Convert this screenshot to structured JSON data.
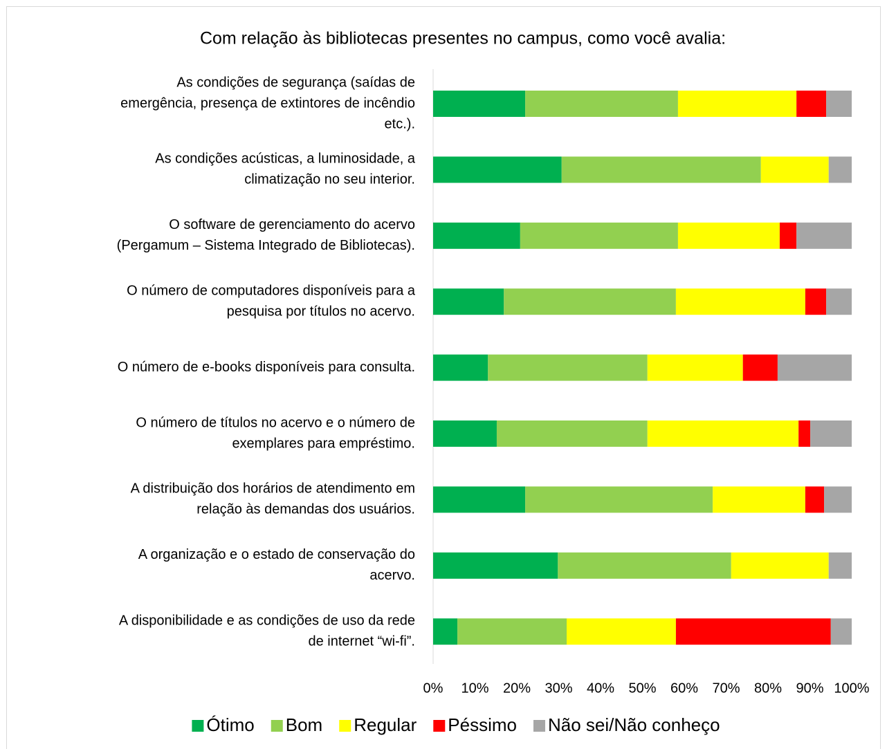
{
  "chart_data": {
    "type": "stacked_bar_horizontal",
    "title": "Com relação às bibliotecas presentes no campus, como você avalia:",
    "categories": [
      [
        "As condições de segurança (saídas de",
        "emergência, presença de extintores de incêndio",
        "etc.)."
      ],
      [
        "As condições acústicas, a luminosidade, a",
        "climatização no seu interior."
      ],
      [
        "O software de gerenciamento do acervo",
        "(Pergamum – Sistema Integrado de Bibliotecas)."
      ],
      [
        "O número de computadores disponíveis para a",
        "pesquisa por títulos no acervo."
      ],
      [
        "O número de e-books disponíveis para consulta."
      ],
      [
        "O número de títulos no acervo e o número de",
        "exemplares para empréstimo."
      ],
      [
        "A distribuição dos horários de atendimento em",
        "relação às demandas dos usuários."
      ],
      [
        "A organização e o estado de conservação do",
        "acervo."
      ],
      [
        "A disponibilidade e as condições de uso da rede",
        "de internet “wi-fi”."
      ]
    ],
    "series": [
      {
        "name": "Ótimo",
        "color": "#00b050",
        "values": [
          22.0,
          30.7,
          20.8,
          16.9,
          13.1,
          15.2,
          22.0,
          29.8,
          5.8
        ]
      },
      {
        "name": "Bom",
        "color": "#92d050",
        "values": [
          36.5,
          47.6,
          37.7,
          41.1,
          38.1,
          36.0,
          44.8,
          41.4,
          26.1
        ]
      },
      {
        "name": "Regular",
        "color": "#ffff00",
        "values": [
          28.3,
          16.2,
          24.3,
          30.9,
          22.8,
          36.1,
          22.1,
          23.3,
          26.1
        ]
      },
      {
        "name": "Péssimo",
        "color": "#ff0000",
        "values": [
          7.1,
          0,
          4.0,
          5.0,
          8.3,
          2.8,
          4.5,
          0,
          37.0
        ]
      },
      {
        "name": "Não sei/Não conheço",
        "color": "#a6a6a6",
        "values": [
          6.1,
          5.5,
          13.2,
          6.1,
          17.7,
          9.9,
          6.6,
          5.5,
          5.0
        ]
      }
    ],
    "xlim": [
      0,
      100
    ],
    "xticks": [
      {
        "value": 0,
        "label": "0%"
      },
      {
        "value": 10,
        "label": "10%"
      },
      {
        "value": 20,
        "label": "20%"
      },
      {
        "value": 30,
        "label": "30%"
      },
      {
        "value": 40,
        "label": "40%"
      },
      {
        "value": 50,
        "label": "50%"
      },
      {
        "value": 60,
        "label": "60%"
      },
      {
        "value": 70,
        "label": "70%"
      },
      {
        "value": 80,
        "label": "80%"
      },
      {
        "value": 90,
        "label": "90%"
      },
      {
        "value": 100,
        "label": "100%"
      }
    ],
    "legend": "bottom"
  }
}
